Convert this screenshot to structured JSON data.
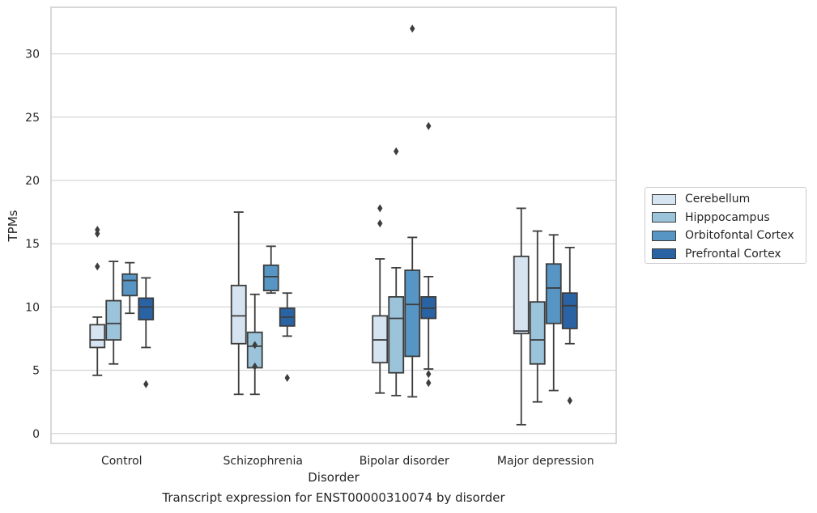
{
  "chart_data": {
    "type": "box",
    "title": "",
    "caption": "Transcript expression for ENST00000310074 by disorder",
    "xlabel": "Disorder",
    "ylabel": "TPMs",
    "categories": [
      "Control",
      "Schizophrenia",
      "Bipolar disorder",
      "Major depression"
    ],
    "ylim": [
      -0.7,
      33.9
    ],
    "yticks": [
      0,
      5,
      10,
      15,
      20,
      25,
      30
    ],
    "grid": "horizontal",
    "legend_position": "right",
    "series": [
      {
        "name": "Cerebellum",
        "color": "#d6e3f0",
        "boxes": [
          {
            "whisker_low": 4.6,
            "q1": 6.8,
            "median": 7.4,
            "q3": 8.6,
            "whisker_high": 9.2,
            "outliers": [
              13.2,
              15.8,
              16.1
            ]
          },
          {
            "whisker_low": 3.1,
            "q1": 7.1,
            "median": 9.3,
            "q3": 11.7,
            "whisker_high": 17.5,
            "outliers": []
          },
          {
            "whisker_low": 3.2,
            "q1": 5.6,
            "median": 7.4,
            "q3": 9.3,
            "whisker_high": 13.8,
            "outliers": [
              16.6,
              17.8
            ]
          },
          {
            "whisker_low": 0.7,
            "q1": 7.9,
            "median": 8.1,
            "q3": 14.0,
            "whisker_high": 17.8,
            "outliers": []
          }
        ]
      },
      {
        "name": "Hipppocampus",
        "color": "#9bc3da",
        "boxes": [
          {
            "whisker_low": 5.5,
            "q1": 7.4,
            "median": 8.7,
            "q3": 10.5,
            "whisker_high": 13.6,
            "outliers": []
          },
          {
            "whisker_low": 3.1,
            "q1": 5.2,
            "median": 6.9,
            "q3": 8.0,
            "whisker_high": 11.0,
            "outliers": [
              5.3,
              7.0
            ]
          },
          {
            "whisker_low": 3.0,
            "q1": 4.8,
            "median": 9.1,
            "q3": 10.8,
            "whisker_high": 13.1,
            "outliers": [
              22.3
            ]
          },
          {
            "whisker_low": 2.5,
            "q1": 5.5,
            "median": 7.4,
            "q3": 10.4,
            "whisker_high": 16.0,
            "outliers": []
          }
        ]
      },
      {
        "name": "Orbitofontal Cortex",
        "color": "#5796c4",
        "boxes": [
          {
            "whisker_low": 9.5,
            "q1": 10.9,
            "median": 12.1,
            "q3": 12.6,
            "whisker_high": 13.5,
            "outliers": []
          },
          {
            "whisker_low": 11.1,
            "q1": 11.3,
            "median": 12.4,
            "q3": 13.3,
            "whisker_high": 14.8,
            "outliers": []
          },
          {
            "whisker_low": 2.9,
            "q1": 6.1,
            "median": 10.2,
            "q3": 12.9,
            "whisker_high": 15.5,
            "outliers": [
              32.0
            ]
          },
          {
            "whisker_low": 3.4,
            "q1": 8.7,
            "median": 11.5,
            "q3": 13.4,
            "whisker_high": 15.7,
            "outliers": []
          }
        ]
      },
      {
        "name": "Prefrontal Cortex",
        "color": "#2a63a3",
        "boxes": [
          {
            "whisker_low": 6.8,
            "q1": 9.0,
            "median": 10.0,
            "q3": 10.7,
            "whisker_high": 12.3,
            "outliers": [
              3.9
            ]
          },
          {
            "whisker_low": 7.7,
            "q1": 8.5,
            "median": 9.2,
            "q3": 9.9,
            "whisker_high": 11.1,
            "outliers": [
              4.4
            ]
          },
          {
            "whisker_low": 5.1,
            "q1": 9.1,
            "median": 9.9,
            "q3": 10.8,
            "whisker_high": 12.4,
            "outliers": [
              4.0,
              4.7,
              24.3
            ]
          },
          {
            "whisker_low": 7.1,
            "q1": 8.3,
            "median": 10.1,
            "q3": 11.1,
            "whisker_high": 14.7,
            "outliers": [
              2.6
            ]
          }
        ]
      }
    ]
  }
}
